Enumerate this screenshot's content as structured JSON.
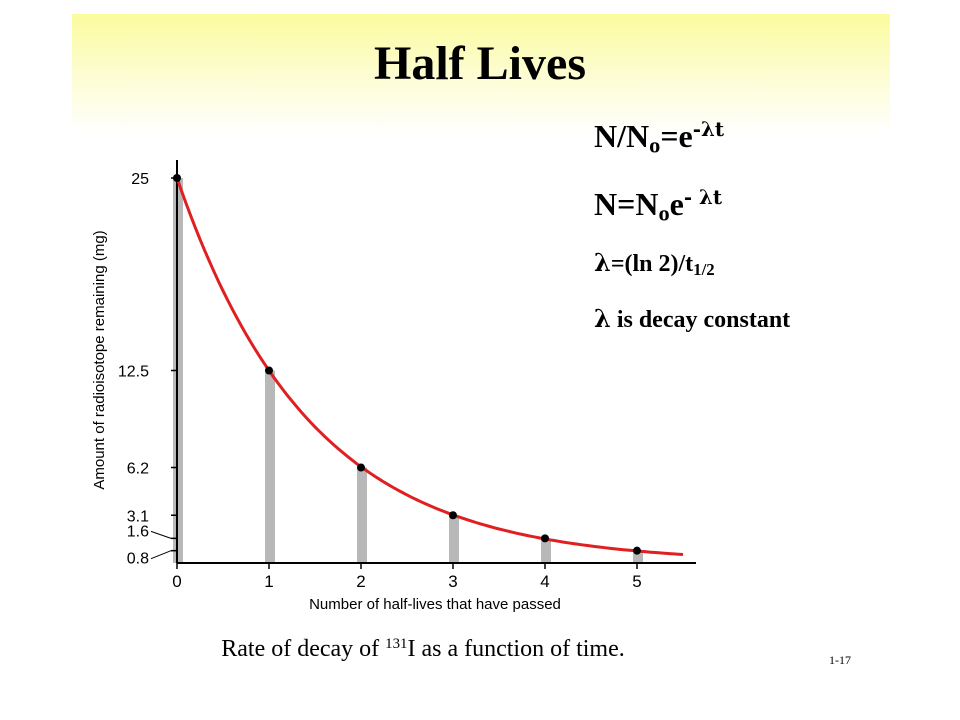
{
  "slide": {
    "title": "Half Lives",
    "number": "1-17"
  },
  "equations": [
    {
      "base": "N/N",
      "sub": "o",
      "mid": "=e",
      "sup": "-λt"
    },
    {
      "base": "N=N",
      "sub": "o",
      "mid": "e",
      "sup": "- λt"
    },
    {
      "lambda": "λ",
      "text": "=(ln 2)/t",
      "sub": "1/2"
    },
    {
      "lambda": "λ",
      "text": " is decay constant"
    }
  ],
  "caption": {
    "before": "Rate of decay of ",
    "sup": "131",
    "after": "I as a function of time."
  },
  "chart_data": {
    "type": "line",
    "xlabel": "Number of half-lives that have passed",
    "ylabel": "Amount of radioisotope remaining (mg)",
    "x_ticks": [
      "0",
      "1",
      "2",
      "3",
      "4",
      "5"
    ],
    "y_ticks": [
      {
        "value": 25,
        "label": "25"
      },
      {
        "value": 12.5,
        "label": "12.5"
      },
      {
        "value": 6.2,
        "label": "6.2"
      },
      {
        "value": 3.1,
        "label": "3.1"
      },
      {
        "value": 1.6,
        "label": "1.6"
      },
      {
        "value": 0.8,
        "label": "0.8"
      }
    ],
    "points": [
      {
        "x": 0,
        "y": 25
      },
      {
        "x": 1,
        "y": 12.5
      },
      {
        "x": 2,
        "y": 6.2
      },
      {
        "x": 3,
        "y": 3.1
      },
      {
        "x": 4,
        "y": 1.6
      },
      {
        "x": 5,
        "y": 0.8
      }
    ],
    "curve_x_range": [
      0,
      5.5
    ],
    "xlim": [
      0,
      5.5
    ],
    "ylim": [
      0,
      25
    ],
    "curve_color": "#e02020",
    "bar_color": "#b8b8b8"
  }
}
